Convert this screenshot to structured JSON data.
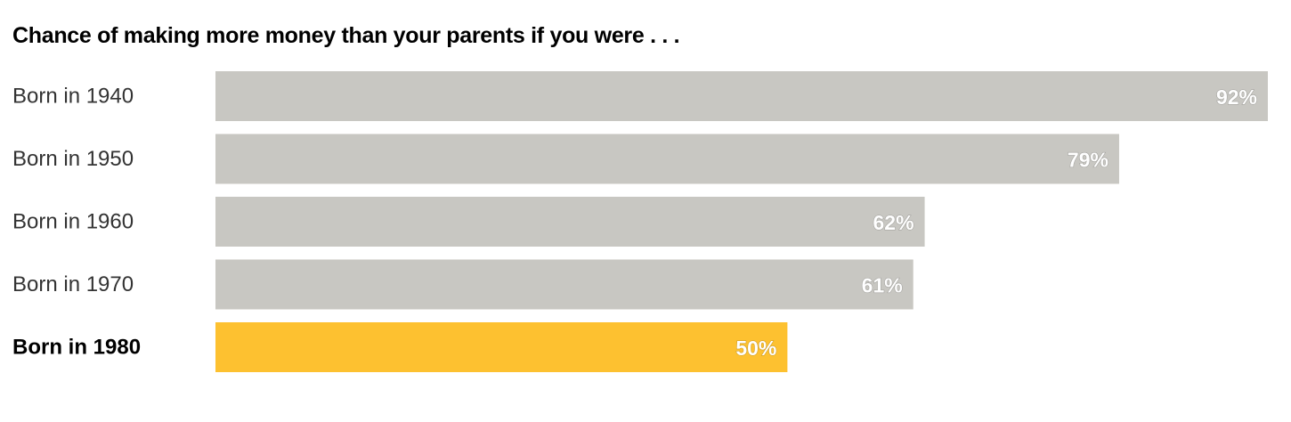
{
  "chart_data": {
    "type": "bar",
    "orientation": "horizontal",
    "title": "Chance of making more money than your parents if you were . . .",
    "categories": [
      "Born in 1940",
      "Born in 1950",
      "Born in 1960",
      "Born in 1970",
      "Born in 1980"
    ],
    "values": [
      92,
      79,
      62,
      61,
      50
    ],
    "value_labels": [
      "92%",
      "79%",
      "62%",
      "61%",
      "50%"
    ],
    "unit": "%",
    "highlight_index": 4,
    "xlim": [
      0,
      92
    ],
    "grid": false,
    "legend": "none",
    "colors": {
      "default_bar": "#c8c7c2",
      "highlight_bar": "#fdc130"
    }
  }
}
